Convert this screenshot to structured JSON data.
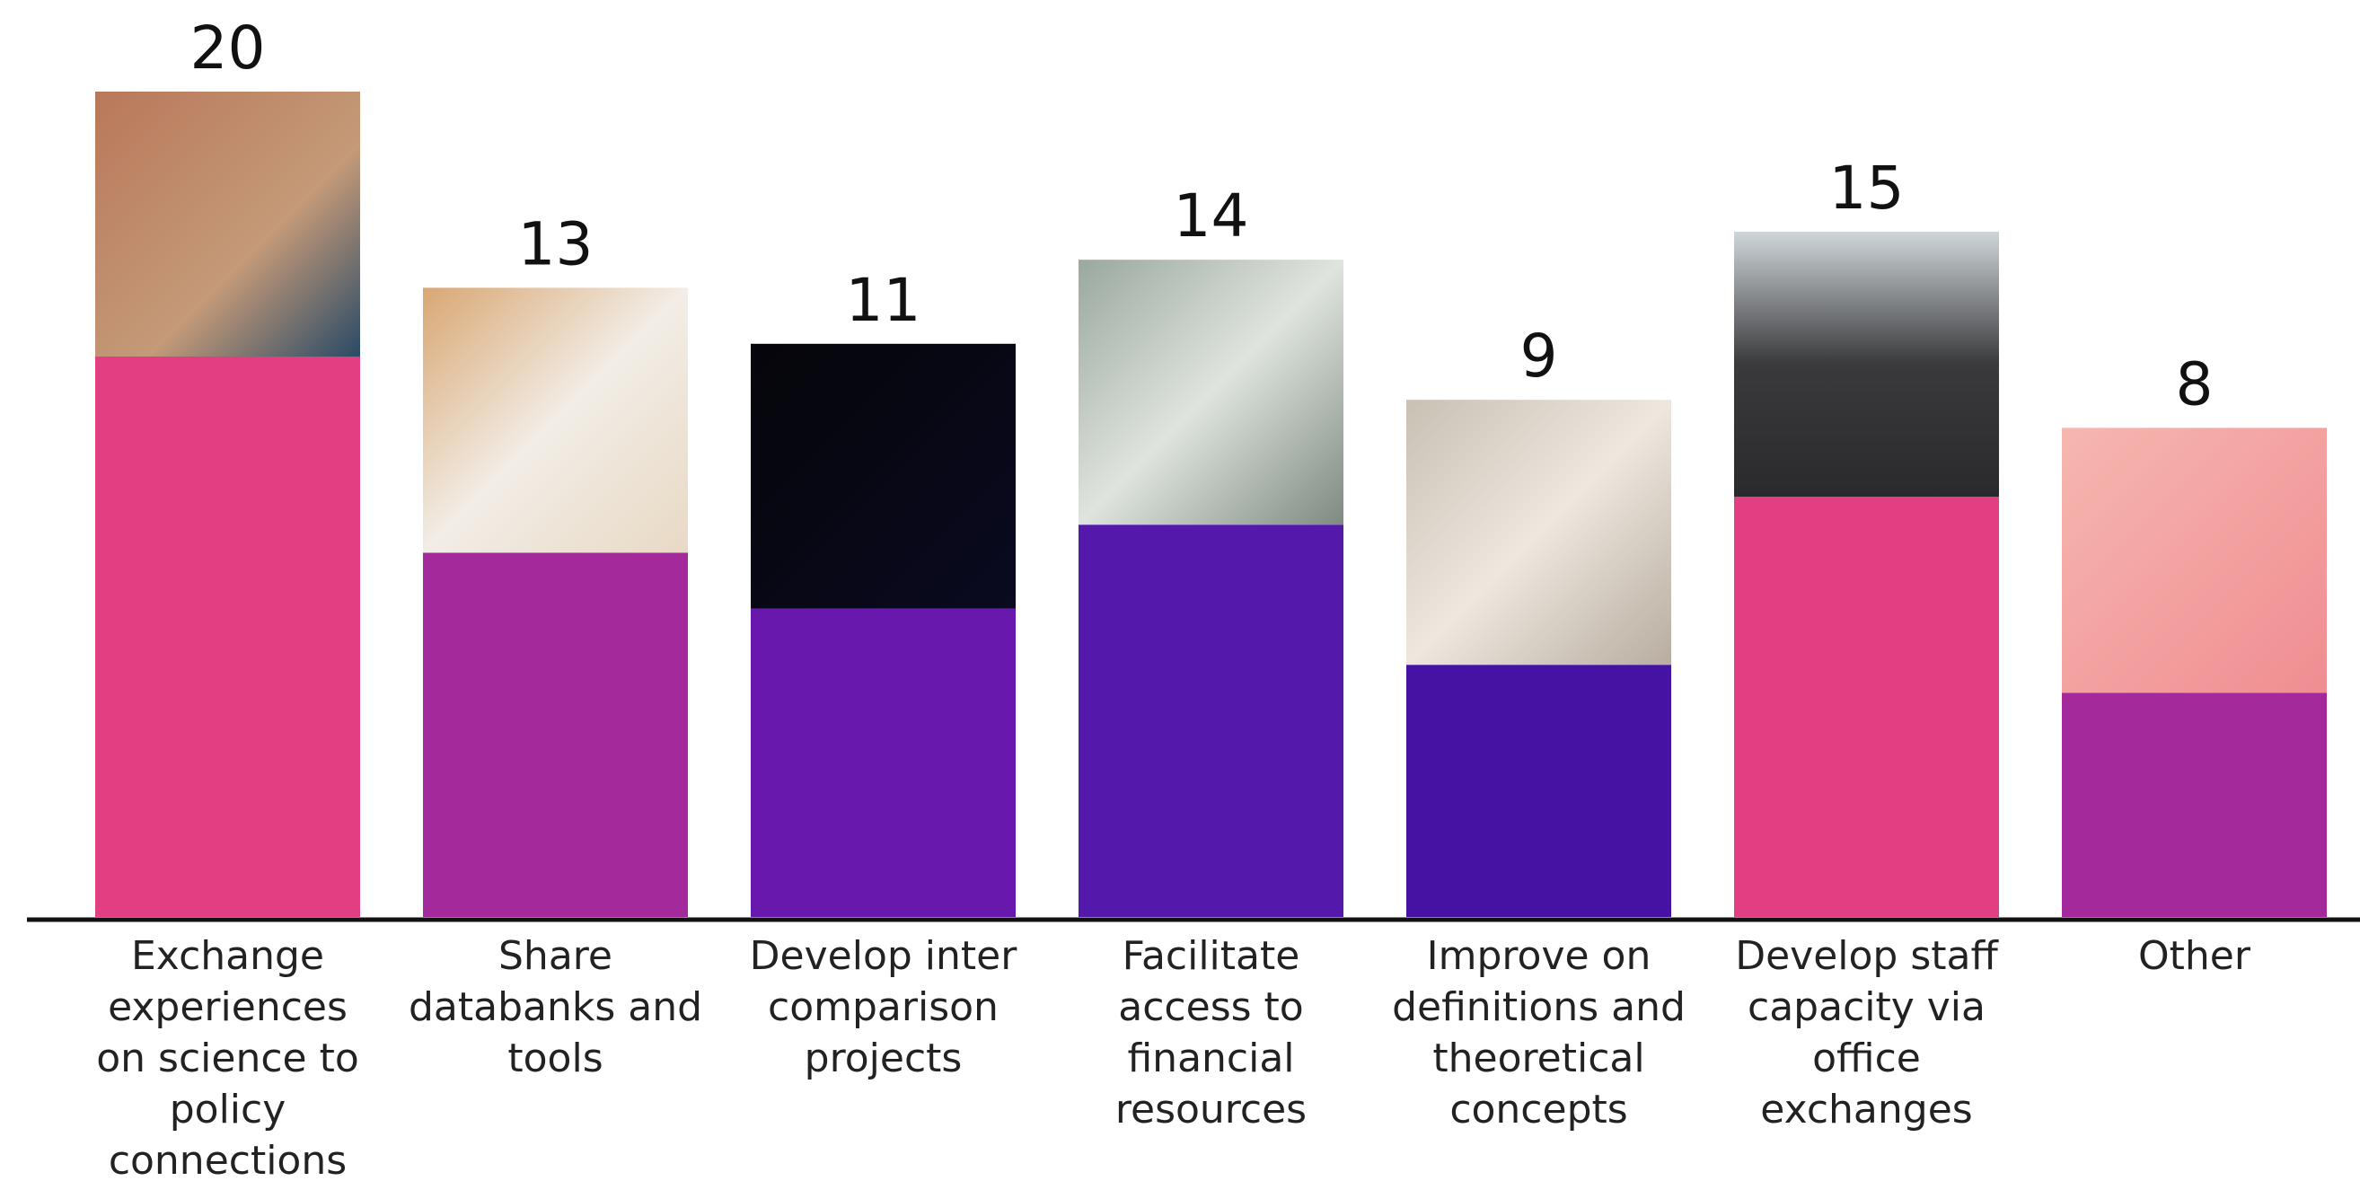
{
  "chart_data": {
    "type": "bar",
    "categories": [
      "Exchange experiences on science to policy connections",
      "Share databanks and tools",
      "Develop inter comparison projects",
      "Facilitate access to financial resources",
      "Improve on definitions and theoretical concepts",
      "Develop staff capacity via office exchanges",
      "Other"
    ],
    "values": [
      20,
      13,
      11,
      14,
      9,
      15,
      8
    ],
    "colors": [
      "#e23e82",
      "#a42a9b",
      "#6818ad",
      "#5419ab",
      "#4512a3",
      "#e23e82",
      "#a42a9b"
    ],
    "ylim": [
      0,
      20
    ]
  }
}
